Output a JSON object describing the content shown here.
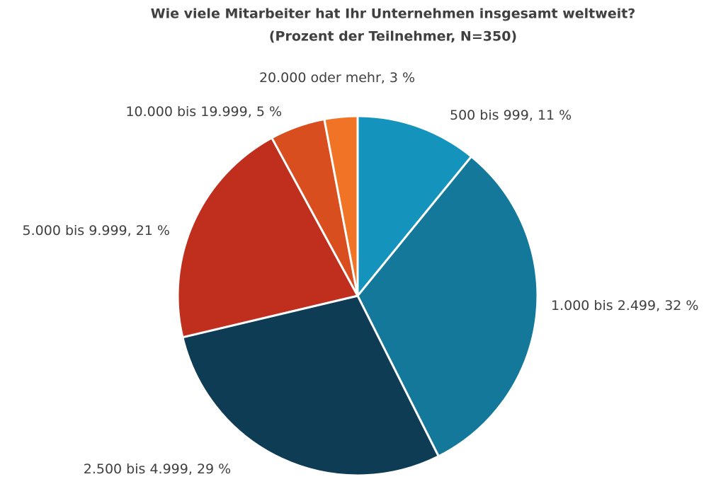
{
  "chart_data": {
    "type": "pie",
    "title": "Wie viele Mitarbeiter hat Ihr Unternehmen insgesamt weltweit?",
    "subtitle": "(Prozent der Teilnehmer, N=350)",
    "categories": [
      "500 bis 999",
      "1.000 bis 2.499",
      "2.500 bis 4.999",
      "5.000 bis 9.999",
      "10.000 bis 19.999",
      "20.000 oder mehr"
    ],
    "values": [
      11,
      32,
      29,
      21,
      5,
      3
    ],
    "value_labels": [
      "11 %",
      "32 %",
      "29 %",
      "21 %",
      "5 %",
      "3 %"
    ],
    "label_separator": ", ",
    "colors": [
      "#1494bc",
      "#137899",
      "#0e3c55",
      "#c02e1d",
      "#d94e1f",
      "#f07326"
    ]
  }
}
